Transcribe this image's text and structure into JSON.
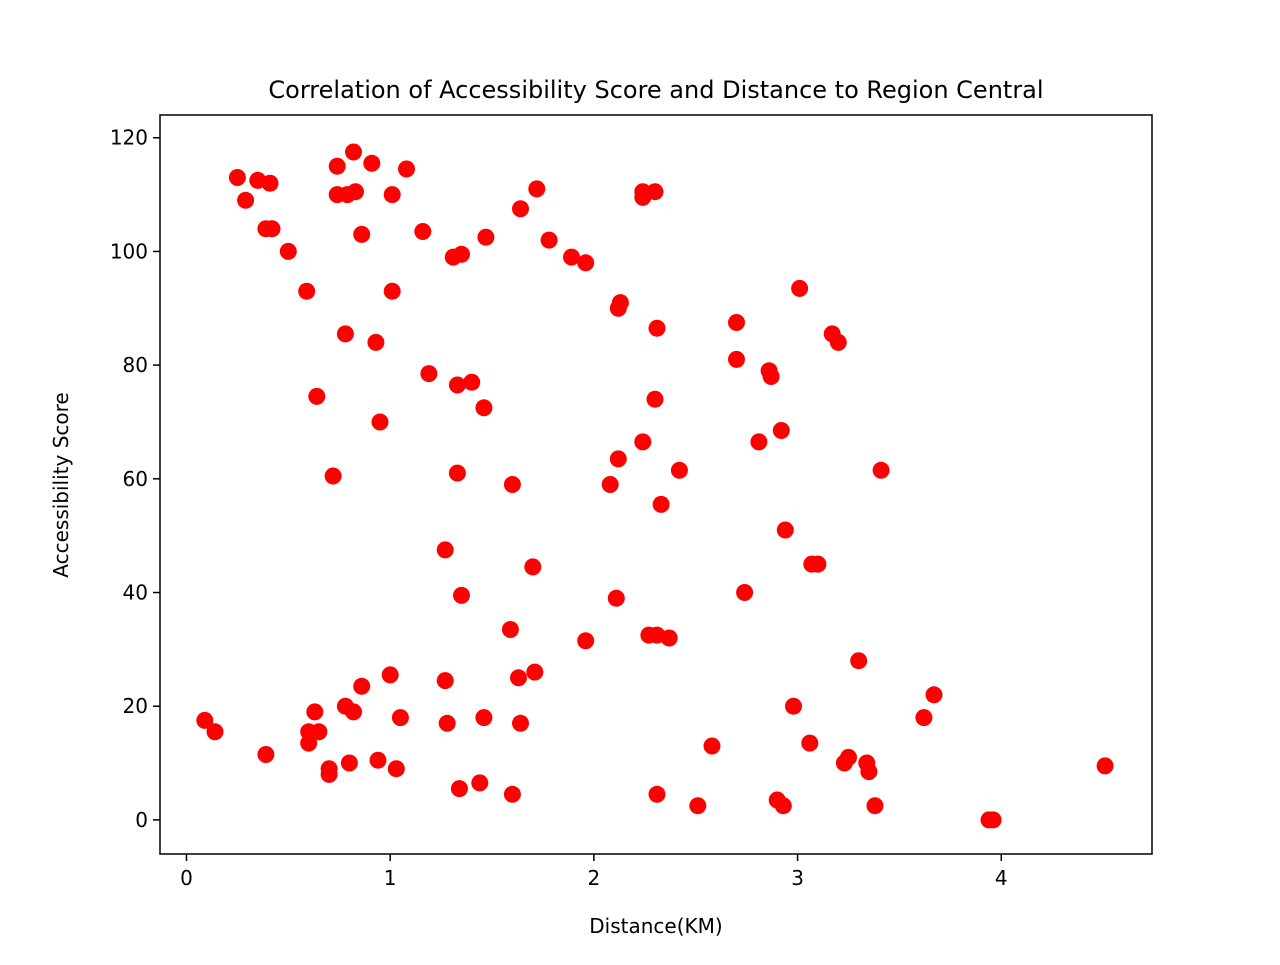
{
  "chart_data": {
    "type": "scatter",
    "title": "Correlation of Accessibility Score and Distance to Region Central",
    "xlabel": "Distance(KM)",
    "ylabel": "Accessibility Score",
    "xlim": [
      -0.13,
      4.74
    ],
    "ylim": [
      -6,
      124
    ],
    "xticks": [
      0,
      1,
      2,
      3,
      4
    ],
    "yticks": [
      0,
      20,
      40,
      60,
      80,
      100,
      120
    ],
    "grid": false,
    "legend": "none",
    "marker_color": "#ff0000",
    "points": [
      [
        0.25,
        113
      ],
      [
        0.35,
        112.5
      ],
      [
        0.41,
        112
      ],
      [
        0.29,
        109
      ],
      [
        0.39,
        104
      ],
      [
        0.42,
        104
      ],
      [
        0.5,
        100
      ],
      [
        0.59,
        93
      ],
      [
        0.74,
        115
      ],
      [
        0.82,
        117.5
      ],
      [
        0.91,
        115.5
      ],
      [
        0.74,
        110
      ],
      [
        0.79,
        110
      ],
      [
        0.83,
        110.5
      ],
      [
        0.86,
        103
      ],
      [
        1.01,
        110
      ],
      [
        1.08,
        114.5
      ],
      [
        1.16,
        103.5
      ],
      [
        1.01,
        93
      ],
      [
        0.78,
        85.5
      ],
      [
        0.93,
        84
      ],
      [
        0.64,
        74.5
      ],
      [
        0.95,
        70
      ],
      [
        0.72,
        60.5
      ],
      [
        1.19,
        78.5
      ],
      [
        1.31,
        99
      ],
      [
        1.35,
        99.5
      ],
      [
        1.47,
        102.5
      ],
      [
        1.33,
        76.5
      ],
      [
        1.4,
        77
      ],
      [
        1.46,
        72.5
      ],
      [
        1.33,
        61
      ],
      [
        1.64,
        107.5
      ],
      [
        1.72,
        111
      ],
      [
        1.78,
        102
      ],
      [
        1.89,
        99
      ],
      [
        1.96,
        98
      ],
      [
        1.6,
        59
      ],
      [
        2.13,
        91
      ],
      [
        2.12,
        90
      ],
      [
        2.24,
        110.5
      ],
      [
        2.24,
        109.5
      ],
      [
        2.3,
        110.5
      ],
      [
        2.31,
        86.5
      ],
      [
        2.3,
        74
      ],
      [
        2.24,
        66.5
      ],
      [
        2.12,
        63.5
      ],
      [
        2.08,
        59
      ],
      [
        2.33,
        55.5
      ],
      [
        2.42,
        61.5
      ],
      [
        2.7,
        87.5
      ],
      [
        2.7,
        81
      ],
      [
        2.86,
        79
      ],
      [
        2.87,
        78
      ],
      [
        2.92,
        68.5
      ],
      [
        2.81,
        66.5
      ],
      [
        3.01,
        93.5
      ],
      [
        3.17,
        85.5
      ],
      [
        3.2,
        84
      ],
      [
        3.41,
        61.5
      ],
      [
        2.94,
        51
      ],
      [
        3.07,
        45
      ],
      [
        3.1,
        45
      ],
      [
        2.74,
        40
      ],
      [
        1.27,
        47.5
      ],
      [
        1.35,
        39.5
      ],
      [
        1.7,
        44.5
      ],
      [
        1.59,
        33.5
      ],
      [
        1.96,
        31.5
      ],
      [
        2.11,
        39
      ],
      [
        2.27,
        32.5
      ],
      [
        2.31,
        32.5
      ],
      [
        2.37,
        32
      ],
      [
        3.3,
        28
      ],
      [
        3.67,
        22
      ],
      [
        3.62,
        18
      ],
      [
        2.98,
        20
      ],
      [
        3.06,
        13.5
      ],
      [
        3.25,
        11
      ],
      [
        3.23,
        10
      ],
      [
        3.34,
        10
      ],
      [
        3.35,
        8.5
      ],
      [
        3.38,
        2.5
      ],
      [
        2.58,
        13
      ],
      [
        2.9,
        3.5
      ],
      [
        2.93,
        2.5
      ],
      [
        2.51,
        2.5
      ],
      [
        2.31,
        4.5
      ],
      [
        1.63,
        25
      ],
      [
        1.71,
        26
      ],
      [
        1.64,
        17
      ],
      [
        1.6,
        4.5
      ],
      [
        1.46,
        18
      ],
      [
        1.44,
        6.5
      ],
      [
        1.34,
        5.5
      ],
      [
        1.27,
        24.5
      ],
      [
        1.28,
        17
      ],
      [
        1.0,
        25.5
      ],
      [
        1.05,
        18
      ],
      [
        1.03,
        9
      ],
      [
        0.94,
        10.5
      ],
      [
        0.86,
        23.5
      ],
      [
        0.78,
        20
      ],
      [
        0.82,
        19
      ],
      [
        0.8,
        10
      ],
      [
        0.7,
        9
      ],
      [
        0.7,
        8
      ],
      [
        0.63,
        19
      ],
      [
        0.65,
        15.5
      ],
      [
        0.6,
        15.5
      ],
      [
        0.6,
        13.5
      ],
      [
        0.39,
        11.5
      ],
      [
        0.09,
        17.5
      ],
      [
        0.14,
        15.5
      ],
      [
        3.94,
        0
      ],
      [
        3.96,
        0
      ],
      [
        4.51,
        9.5
      ]
    ]
  }
}
